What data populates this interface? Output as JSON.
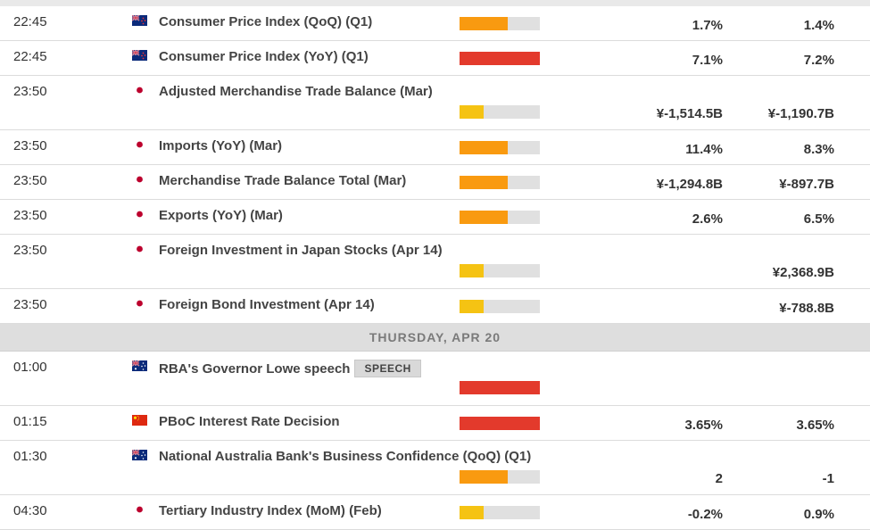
{
  "colors": {
    "high": "#e33a2c",
    "medium": "#f99a10",
    "low": "#f5c313",
    "track": "#e0e0e0"
  },
  "day_header": "THURSDAY, APR 20",
  "events": [
    {
      "time": "22:45",
      "country": "nz",
      "event": "Consumer Price Index (QoQ) (Q1)",
      "impact": "medium",
      "impact_level": 0.6,
      "actual": "1.7%",
      "consensus": "1.4%",
      "tall": false
    },
    {
      "time": "22:45",
      "country": "nz",
      "event": "Consumer Price Index (YoY) (Q1)",
      "impact": "high",
      "impact_level": 1.0,
      "actual": "7.1%",
      "consensus": "7.2%",
      "tall": false
    },
    {
      "time": "23:50",
      "country": "jp",
      "event": "Adjusted Merchandise Trade Balance (Mar)",
      "impact": "low",
      "impact_level": 0.3,
      "actual": "¥-1,514.5B",
      "consensus": "¥-1,190.7B",
      "tall": true
    },
    {
      "time": "23:50",
      "country": "jp",
      "event": "Imports (YoY) (Mar)",
      "impact": "medium",
      "impact_level": 0.6,
      "actual": "11.4%",
      "consensus": "8.3%",
      "tall": false
    },
    {
      "time": "23:50",
      "country": "jp",
      "event": "Merchandise Trade Balance Total (Mar)",
      "impact": "medium",
      "impact_level": 0.6,
      "actual": "¥-1,294.8B",
      "consensus": "¥-897.7B",
      "tall": false
    },
    {
      "time": "23:50",
      "country": "jp",
      "event": "Exports (YoY) (Mar)",
      "impact": "medium",
      "impact_level": 0.6,
      "actual": "2.6%",
      "consensus": "6.5%",
      "tall": false
    },
    {
      "time": "23:50",
      "country": "jp",
      "event": "Foreign Investment in Japan Stocks (Apr 14)",
      "impact": "low",
      "impact_level": 0.3,
      "actual": "",
      "consensus": "¥2,368.9B",
      "tall": true
    },
    {
      "time": "23:50",
      "country": "jp",
      "event": "Foreign Bond Investment (Apr 14)",
      "impact": "low",
      "impact_level": 0.3,
      "actual": "",
      "consensus": "¥-788.8B",
      "tall": false
    },
    {
      "time": "01:00",
      "country": "au",
      "event": "RBA's Governor Lowe speech",
      "badge": "SPEECH",
      "impact": "high",
      "impact_level": 1.0,
      "actual": "",
      "consensus": "",
      "tall": true
    },
    {
      "time": "01:15",
      "country": "cn",
      "event": "PBoC Interest Rate Decision",
      "impact": "high",
      "impact_level": 1.0,
      "actual": "3.65%",
      "consensus": "3.65%",
      "tall": false
    },
    {
      "time": "01:30",
      "country": "au",
      "event": "National Australia Bank's Business Confidence (QoQ) (Q1)",
      "impact": "medium",
      "impact_level": 0.6,
      "actual": "2",
      "consensus": "-1",
      "tall": true
    },
    {
      "time": "04:30",
      "country": "jp",
      "event": "Tertiary Industry Index (MoM) (Feb)",
      "impact": "low",
      "impact_level": 0.3,
      "actual": "-0.2%",
      "consensus": "0.9%",
      "tall": false
    }
  ],
  "day_break_before_index": 8
}
